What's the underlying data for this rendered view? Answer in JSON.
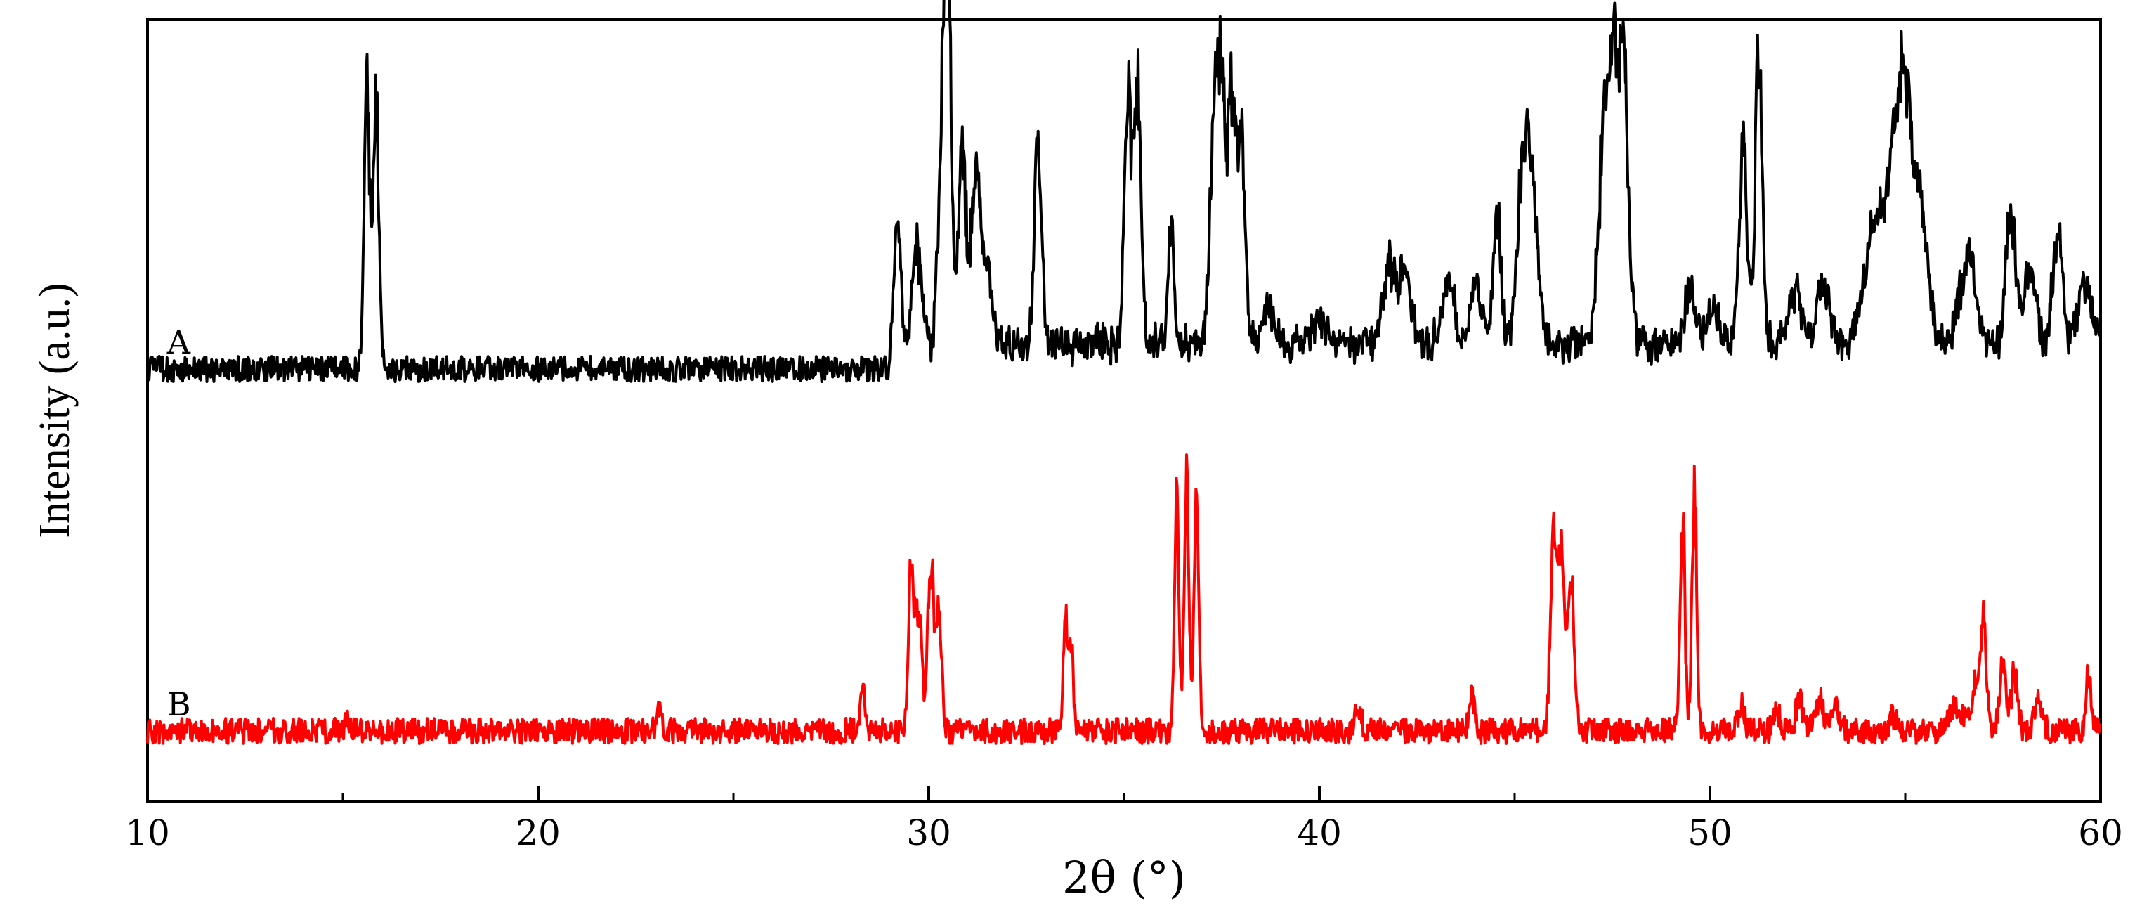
{
  "chart_data": {
    "type": "line",
    "title": "",
    "xlabel": "2θ (°)",
    "ylabel": "Intensity (a.u.)",
    "xlim": [
      10,
      60
    ],
    "xticks": [
      "10",
      "20",
      "30",
      "40",
      "50",
      "60"
    ],
    "yticks": [],
    "grid": false,
    "legend": "none",
    "series": [
      {
        "name": "A",
        "color": "#000000",
        "baseline": 1.0,
        "noise": 0.035,
        "onset": 29.0,
        "onset_level": 0.07,
        "peaks": [
          [
            15.62,
            0.78,
            0.07
          ],
          [
            15.85,
            0.78,
            0.07
          ],
          [
            29.2,
            0.35,
            0.08
          ],
          [
            29.7,
            0.27,
            0.12
          ],
          [
            30.35,
            0.65,
            0.1
          ],
          [
            30.5,
            0.88,
            0.08
          ],
          [
            30.85,
            0.5,
            0.1
          ],
          [
            31.2,
            0.45,
            0.12
          ],
          [
            31.5,
            0.18,
            0.15
          ],
          [
            32.8,
            0.57,
            0.09
          ],
          [
            35.1,
            0.68,
            0.09
          ],
          [
            35.35,
            0.68,
            0.09
          ],
          [
            36.2,
            0.33,
            0.07
          ],
          [
            37.3,
            0.65,
            0.1
          ],
          [
            37.5,
            0.7,
            0.09
          ],
          [
            37.75,
            0.66,
            0.1
          ],
          [
            38.0,
            0.58,
            0.1
          ],
          [
            38.7,
            0.1,
            0.12
          ],
          [
            40.0,
            0.06,
            0.2
          ],
          [
            41.8,
            0.22,
            0.15
          ],
          [
            42.2,
            0.2,
            0.15
          ],
          [
            43.3,
            0.18,
            0.15
          ],
          [
            44.0,
            0.16,
            0.15
          ],
          [
            44.55,
            0.35,
            0.1
          ],
          [
            45.2,
            0.4,
            0.15
          ],
          [
            45.45,
            0.4,
            0.15
          ],
          [
            47.3,
            0.6,
            0.15
          ],
          [
            47.55,
            0.62,
            0.12
          ],
          [
            47.8,
            0.7,
            0.12
          ],
          [
            49.5,
            0.15,
            0.15
          ],
          [
            50.1,
            0.1,
            0.15
          ],
          [
            50.85,
            0.55,
            0.1
          ],
          [
            51.25,
            0.8,
            0.09
          ],
          [
            52.2,
            0.15,
            0.15
          ],
          [
            52.9,
            0.18,
            0.15
          ],
          [
            54.2,
            0.3,
            0.25
          ],
          [
            54.7,
            0.4,
            0.22
          ],
          [
            55.0,
            0.55,
            0.18
          ],
          [
            55.4,
            0.35,
            0.18
          ],
          [
            56.6,
            0.25,
            0.2
          ],
          [
            57.7,
            0.36,
            0.12
          ],
          [
            58.2,
            0.2,
            0.15
          ],
          [
            58.9,
            0.3,
            0.12
          ],
          [
            59.6,
            0.18,
            0.15
          ]
        ]
      },
      {
        "name": "B",
        "color": "#ff0000",
        "baseline": 0.0,
        "noise": 0.035,
        "onset": 99,
        "onset_level": 0.0,
        "peaks": [
          [
            15.1,
            0.04,
            0.05
          ],
          [
            23.1,
            0.06,
            0.06
          ],
          [
            28.3,
            0.12,
            0.06
          ],
          [
            29.55,
            0.45,
            0.07
          ],
          [
            29.75,
            0.35,
            0.08
          ],
          [
            30.05,
            0.48,
            0.07
          ],
          [
            30.25,
            0.3,
            0.08
          ],
          [
            33.5,
            0.28,
            0.06
          ],
          [
            33.65,
            0.22,
            0.06
          ],
          [
            36.35,
            0.62,
            0.06
          ],
          [
            36.6,
            0.7,
            0.06
          ],
          [
            36.85,
            0.66,
            0.06
          ],
          [
            41.0,
            0.06,
            0.08
          ],
          [
            43.9,
            0.1,
            0.07
          ],
          [
            46.0,
            0.53,
            0.08
          ],
          [
            46.2,
            0.5,
            0.08
          ],
          [
            46.45,
            0.43,
            0.08
          ],
          [
            49.3,
            0.58,
            0.06
          ],
          [
            49.6,
            0.66,
            0.06
          ],
          [
            50.8,
            0.07,
            0.08
          ],
          [
            51.7,
            0.06,
            0.08
          ],
          [
            52.3,
            0.08,
            0.1
          ],
          [
            52.8,
            0.09,
            0.1
          ],
          [
            53.2,
            0.08,
            0.1
          ],
          [
            54.7,
            0.04,
            0.1
          ],
          [
            56.3,
            0.08,
            0.15
          ],
          [
            56.8,
            0.12,
            0.1
          ],
          [
            57.0,
            0.28,
            0.08
          ],
          [
            57.5,
            0.2,
            0.08
          ],
          [
            57.8,
            0.16,
            0.08
          ],
          [
            58.4,
            0.08,
            0.1
          ],
          [
            59.7,
            0.16,
            0.06
          ]
        ]
      }
    ]
  }
}
